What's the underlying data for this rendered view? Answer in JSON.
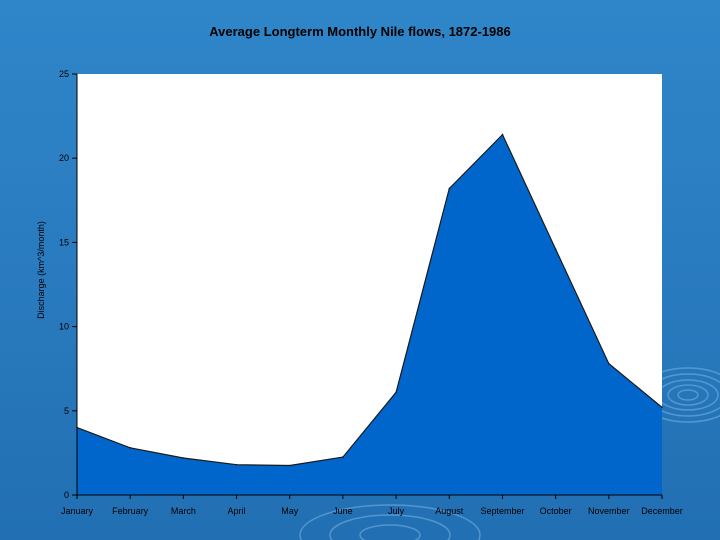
{
  "colors": {
    "background": "#2a7cc0",
    "plot_area": "#ffffff",
    "area_fill": "#0066cc",
    "area_stroke": "#1a1a1a"
  },
  "chart_data": {
    "type": "area",
    "title": "Average Longterm Monthly Nile flows, 1872-1986",
    "xlabel": "",
    "ylabel": "Discharge (km^3/month)",
    "categories": [
      "January",
      "February",
      "March",
      "April",
      "May",
      "June",
      "July",
      "August",
      "September",
      "October",
      "November",
      "December"
    ],
    "series": [
      {
        "values": [
          4.0,
          2.8,
          2.2,
          1.8,
          1.75,
          2.25,
          6.1,
          18.2,
          21.4,
          14.6,
          7.8,
          5.2
        ]
      }
    ],
    "yticks": [
      "0",
      "5",
      "10",
      "15",
      "20",
      "25"
    ],
    "ylim": [
      0,
      25
    ],
    "grid": false,
    "legend": "none"
  }
}
